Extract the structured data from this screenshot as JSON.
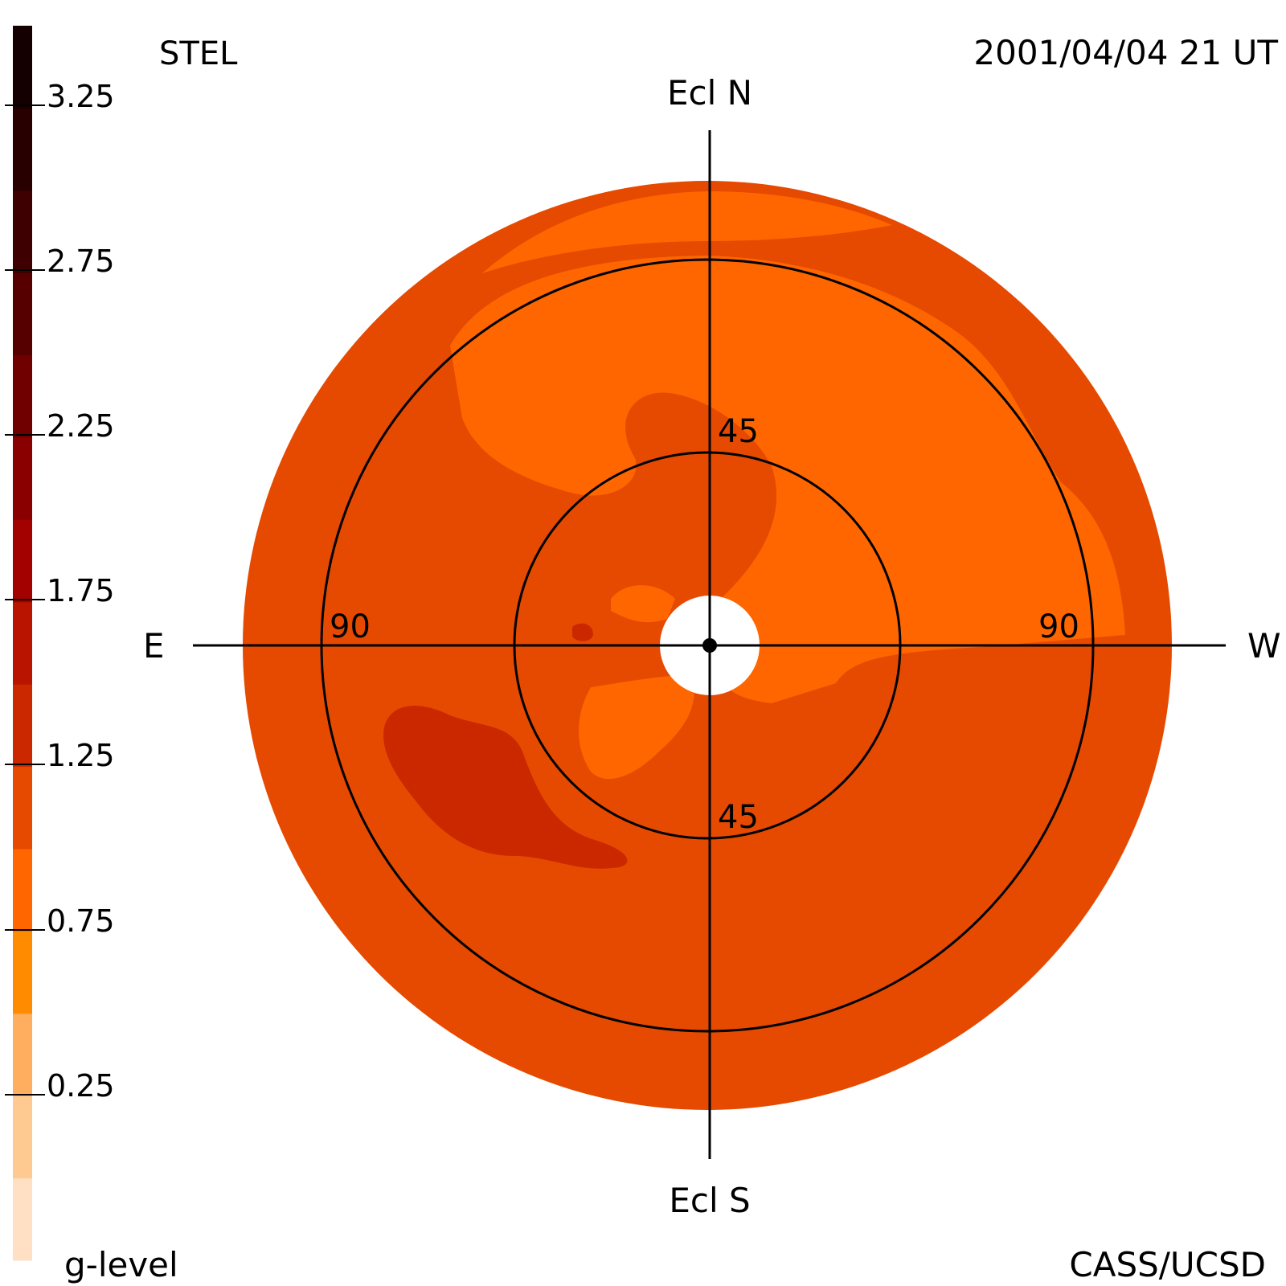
{
  "header": {
    "instrument": "STEL",
    "timestamp": "2001/04/04 21 UT"
  },
  "footer": {
    "colorbar_label": "g-level",
    "credit": "CASS/UCSD"
  },
  "directions": {
    "north": "Ecl N",
    "south": "Ecl S",
    "east": "E",
    "west": "W"
  },
  "rings": {
    "inner_label_top": "45",
    "inner_label_bottom": "45",
    "outer_label_left": "90",
    "outer_label_right": "90"
  },
  "colorbar": {
    "tick_labels": [
      "3.25",
      "2.75",
      "2.25",
      "1.75",
      "1.25",
      "0.75",
      "0.25"
    ],
    "colors": [
      "#ffe0c4",
      "#ffc992",
      "#ffad5e",
      "#ff8c00",
      "#ff6600",
      "#e64a00",
      "#cc2800",
      "#b81400",
      "#a30000",
      "#8a0000",
      "#700000",
      "#560000",
      "#3e0000",
      "#280000",
      "#140000"
    ]
  },
  "map_colors": {
    "background": "#e64a00",
    "light_region": "#ff6600",
    "dark_region": "#cc2800",
    "center_disk": "#ffffff"
  }
}
